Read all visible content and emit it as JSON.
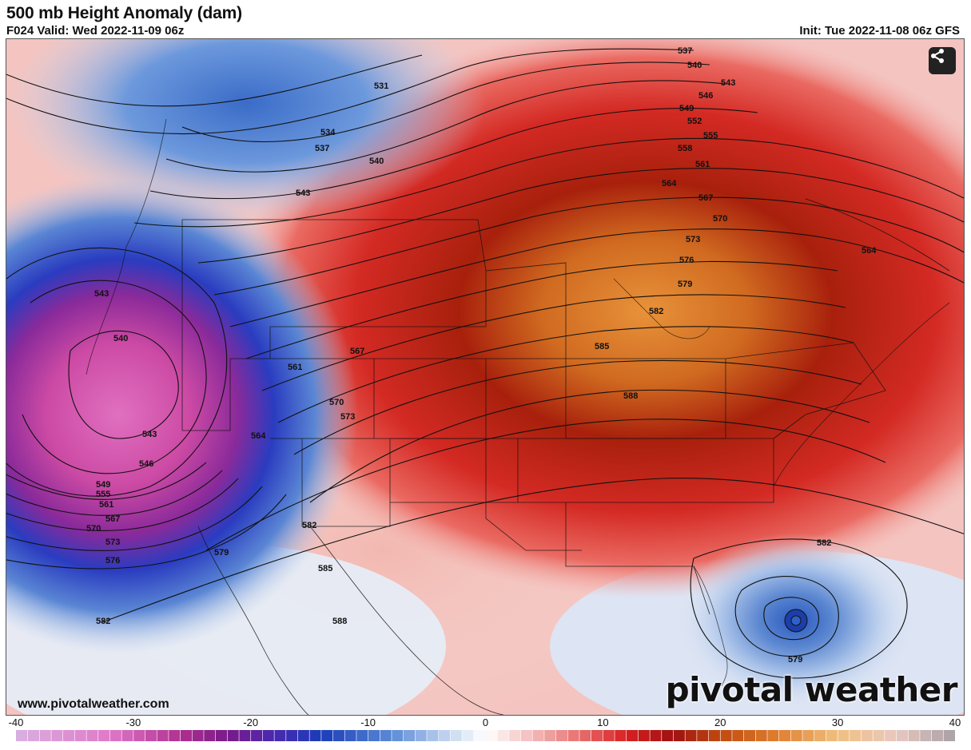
{
  "header": {
    "title": "500 mb Height Anomaly (dam)",
    "valid": "F024 Valid: Wed 2022-11-09 06z",
    "init": "Init: Tue 2022-11-08 06z GFS"
  },
  "map": {
    "website": "www.pivotalweather.com",
    "brand": "pivotal weather",
    "share_icon": "share-icon",
    "contour_labels": [
      "531",
      "534",
      "537",
      "540",
      "543",
      "546",
      "549",
      "552",
      "555",
      "558",
      "561",
      "564",
      "567",
      "570",
      "573",
      "576",
      "579",
      "582",
      "585",
      "588"
    ],
    "colors": {
      "deep_negative": "#c85cb0",
      "negative": "#2040b0",
      "neutral": "#ffffff",
      "positive": "#d82020",
      "strong_positive": "#e07820"
    }
  },
  "colorbar": {
    "ticks": [
      "-40",
      "-30",
      "-20",
      "-10",
      "0",
      "10",
      "20",
      "30",
      "40"
    ],
    "min": -40,
    "max": 40
  }
}
